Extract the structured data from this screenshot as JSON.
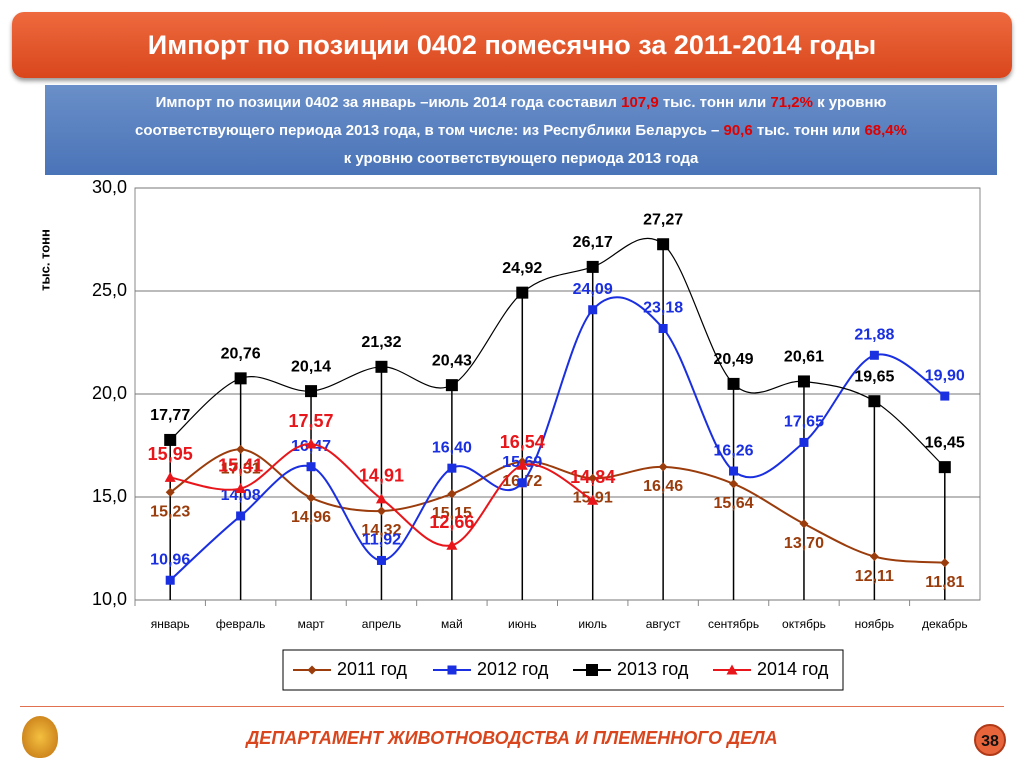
{
  "title": "Импорт по позиции 0402 помесячно за 2011-2014 годы",
  "note": [
    [
      {
        "text": "Импорт по позиции 0402 за январь –июль 2014 года составил ",
        "highlight": false
      },
      {
        "text": "107,9",
        "highlight": true
      },
      {
        "text": " тыс. тонн или ",
        "highlight": false
      },
      {
        "text": "71,2%",
        "highlight": true
      },
      {
        "text": " к уровню",
        "highlight": false
      }
    ],
    [
      {
        "text": "соответствующего периода  2013 года, в том числе: из Республики Беларусь – ",
        "highlight": false
      },
      {
        "text": "90,6",
        "highlight": true
      },
      {
        "text": " тыс. тонн или ",
        "highlight": false
      },
      {
        "text": "68,4%",
        "highlight": true
      }
    ],
    [
      {
        "text": "к уровню соответствующего периода  2013 года",
        "highlight": false
      }
    ]
  ],
  "chart_data": {
    "type": "line",
    "y_label": "тыс. тонн",
    "categories": [
      "январь",
      "февраль",
      "март",
      "апрель",
      "май",
      "июнь",
      "июль",
      "август",
      "сентябрь",
      "октябрь",
      "ноябрь",
      "декабрь"
    ],
    "ylim": [
      10,
      30
    ],
    "yticks": [
      {
        "value": 10,
        "label": "10,0"
      },
      {
        "value": 15,
        "label": "15,0"
      },
      {
        "value": 20,
        "label": "20,0"
      },
      {
        "value": 25,
        "label": "25,0"
      },
      {
        "value": 30,
        "label": "30,0"
      }
    ],
    "grid": true,
    "legend": "bottom",
    "series": [
      {
        "name": "2011 год",
        "color": "#9a3c0c",
        "marker": "diamond",
        "values": [
          15.23,
          17.31,
          14.96,
          14.32,
          15.15,
          16.72,
          15.91,
          16.46,
          15.64,
          13.7,
          12.11,
          11.81
        ],
        "value_labels": [
          "15,23",
          "17,31",
          "14,96",
          "14,32",
          "15,15",
          "16,72",
          "15,91",
          "16,46",
          "15,64",
          "13,70",
          "12,11",
          "11,81"
        ]
      },
      {
        "name": "2012 год",
        "color": "#1a2fe0",
        "marker": "square",
        "values": [
          10.96,
          14.08,
          16.47,
          11.92,
          16.4,
          15.69,
          24.09,
          23.18,
          16.26,
          17.65,
          21.88,
          19.9
        ],
        "value_labels": [
          "10,96",
          "14,08",
          "16,47",
          "11,92",
          "16,40",
          "15,69",
          "24,09",
          "23,18",
          "16,26",
          "17,65",
          "21,88",
          "19,90"
        ]
      },
      {
        "name": "2013 год",
        "color": "#000000",
        "marker": "square",
        "drop_lines": true,
        "values": [
          17.77,
          20.76,
          20.14,
          21.32,
          20.43,
          24.92,
          26.17,
          27.27,
          20.49,
          20.61,
          19.65,
          16.45
        ],
        "value_labels": [
          "17,77",
          "20,76",
          "20,14",
          "21,32",
          "20,43",
          "24,92",
          "26,17",
          "27,27",
          "20,49",
          "20,61",
          "19,65",
          "16,45"
        ]
      },
      {
        "name": "2014 год",
        "color": "#e8161b",
        "marker": "triangle",
        "values": [
          15.95,
          15.41,
          17.57,
          14.91,
          12.66,
          16.54,
          14.84,
          null,
          null,
          null,
          null,
          null
        ],
        "value_labels": [
          "15,95",
          "15,41",
          "17,57",
          "14,91",
          "12,66",
          "16,54",
          "14,84",
          null,
          null,
          null,
          null,
          null
        ]
      }
    ]
  },
  "footer": {
    "department": "ДЕПАРТАМЕНТ ЖИВОТНОВОДСТВА И ПЛЕМЕННОГО ДЕЛА",
    "page": "38"
  }
}
